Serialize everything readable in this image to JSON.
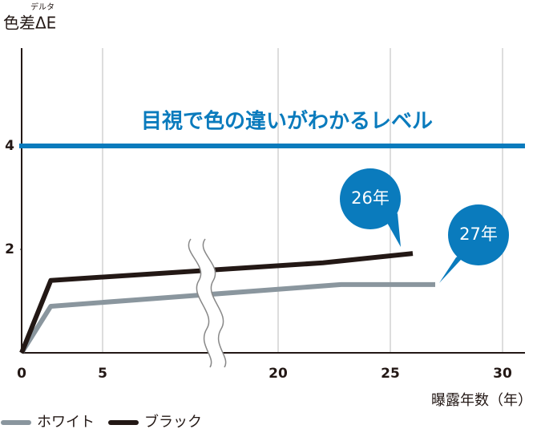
{
  "chart_data": {
    "type": "line",
    "y_label": "色差ΔE",
    "y_label_ruby": "デルタ",
    "x_label": "曝露年数（年）",
    "xlim": [
      0,
      31
    ],
    "xticks": [
      0,
      5,
      20,
      25,
      30
    ],
    "x_break": [
      5,
      20
    ],
    "ylim": [
      0,
      6
    ],
    "yticks": [
      2,
      4
    ],
    "grid": true,
    "reference_line": {
      "value": 4,
      "label": "目視で色の違いがわかるレベル",
      "color": "#0a7bbd"
    },
    "series": [
      {
        "name": "ホワイト",
        "color": "#8a969e",
        "x": [
          0,
          1.8,
          22.8,
          27
        ],
        "values": [
          0,
          0.9,
          1.32,
          1.32
        ]
      },
      {
        "name": "ブラック",
        "color": "#231815",
        "x": [
          0,
          1.8,
          22,
          26
        ],
        "values": [
          0,
          1.4,
          1.74,
          1.92
        ]
      }
    ],
    "annotations": [
      {
        "text": "26年",
        "color": "#0a7bbd"
      },
      {
        "text": "27年",
        "color": "#0a7bbd"
      }
    ]
  }
}
